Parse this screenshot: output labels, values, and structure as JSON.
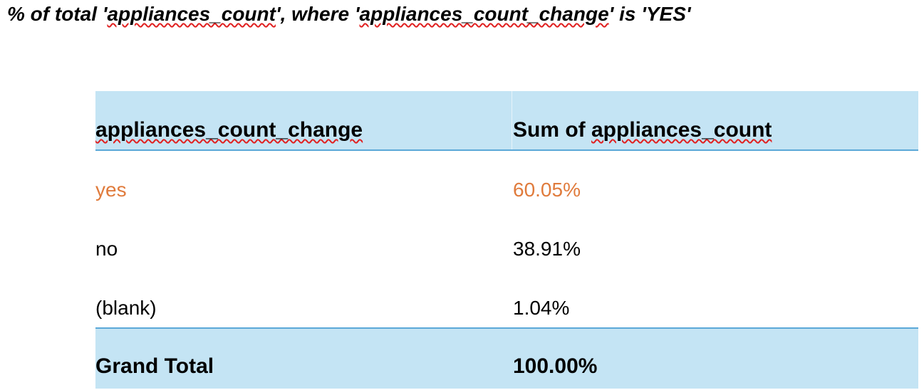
{
  "heading": {
    "prefix": "% of total '",
    "field1": "appliances_count",
    "middle": "', where '",
    "field2": "appliances_count_change",
    "suffix": "' is 'YES'"
  },
  "pivot": {
    "header": {
      "col1": "appliances_count_change",
      "col2_prefix": "Sum of ",
      "col2_field": "appliances_count"
    },
    "rows": [
      {
        "label": "yes",
        "value": "60.05%",
        "highlighted": true
      },
      {
        "label": "no",
        "value": "38.91%",
        "highlighted": false
      },
      {
        "label": "(blank)",
        "value": "1.04%",
        "highlighted": false
      }
    ],
    "total": {
      "label": "Grand Total",
      "value": "100.00%"
    },
    "colors": {
      "header_fill": "#c4e4f4",
      "border": "#5ba8d8",
      "highlight_text": "#e07b3c",
      "spellcheck_underline": "#e02020"
    }
  }
}
